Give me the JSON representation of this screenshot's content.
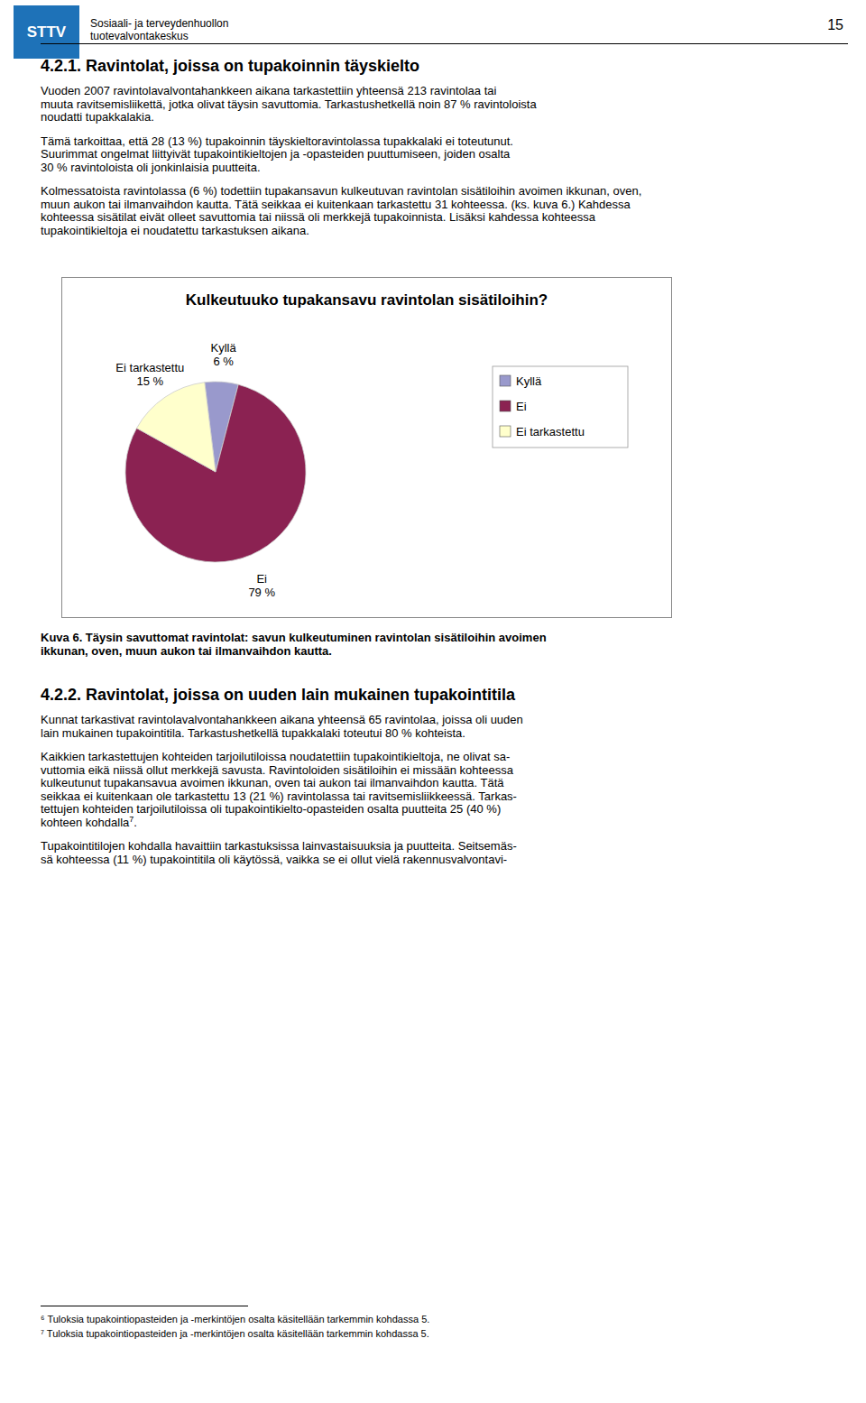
{
  "chart_data": {
    "type": "pie",
    "title": "Kulkeutuuko tupakansavu ravintolan sisätiloihin?",
    "categories": [
      "Kyllä",
      "Ei",
      "Ei tarkastettu"
    ],
    "values": [
      6,
      79,
      15
    ],
    "value_labels": [
      "6 %",
      "79 %",
      "15 %"
    ],
    "colors": [
      "#9999cc",
      "#8b2252",
      "#ffffcc"
    ],
    "data_labels": true,
    "legend": "right"
  },
  "page": {
    "logo": "STTV",
    "organization": [
      "Sosiaali- ja terveydenhuollon",
      "tuotevalvontakeskus"
    ],
    "page_number": "15",
    "before_chart": [
      {
        "kind": "heading",
        "text": "4.2.1. Ravintolat, joissa on tupakoinnin täyskielto"
      },
      {
        "kind": "paragraph",
        "lines": [
          "Vuoden 2007 ravintolavalvontahankkeen aikana tarkastettiin yhteensä 213 ravintolaa tai",
          "muuta ravitsemisliikettä, jotka olivat täysin savuttomia. Tarkastushetkellä noin 87 % ravintoloista",
          "noudatti tupakkalakia."
        ]
      },
      {
        "kind": "paragraph",
        "lines": [
          "Tämä tarkoittaa, että 28 (13 %) tupakoinnin täyskieltoravintolassa tupakkalaki ei toteutunut.",
          "Suurimmat ongelmat liittyivät tupakointikieltojen ja -opasteiden puuttumiseen, joiden osalta",
          "30 % ravintoloista oli jonkinlaisia puutteita."
        ]
      },
      {
        "kind": "paragraph",
        "lines": [
          "Kolmessatoista ravintolassa (6 %) todettiin tupakansavun kulkeutuvan ravintolan sisätiloihin avoimen ikkunan, oven,",
          "muun aukon tai ilmanvaihdon kautta. Tätä seikkaa ei kuitenkaan tarkastettu 31 kohteessa. (ks. kuva 6.) Kahdessa",
          "kohteessa sisätilat eivät olleet savuttomia tai niissä oli merkkejä tupakoinnista. Lisäksi kahdessa kohteessa",
          "tupakointikieltoja ei noudatettu tarkastuksen aikana."
        ]
      }
    ],
    "caption": [
      "Kuva 6.  Täysin savuttomat ravintolat: savun kulkeutuminen ravintolan sisätiloihin avoimen",
      "ikkunan, oven, muun aukon tai ilmanvaihdon kautta."
    ],
    "after_chart": [
      {
        "kind": "heading",
        "text": "4.2.2. Ravintolat, joissa on uuden lain mukainen tupakointitila"
      },
      {
        "kind": "paragraph",
        "lines": [
          "Kunnat tarkastivat ravintolavalvontahankkeen aikana yhteensä 65 ravintolaa, joissa oli uuden",
          "lain mukainen tupakointitila. Tarkastushetkellä tupakkalaki toteutui 80 % kohteista."
        ]
      },
      {
        "kind": "paragraph",
        "lines": [
          "Kaikkien tarkastettujen kohteiden tarjoilutiloissa noudatettiin tupakointikieltoja, ne olivat sa-",
          "vuttomia eikä niissä ollut merkkejä savusta. Ravintoloiden sisätiloihin ei missään kohteessa",
          "kulkeutunut tupakansavua avoimen ikkunan, oven tai aukon tai ilmanvaihdon kautta. Tätä",
          "seikkaa ei kuitenkaan ole tarkastettu 13 (21 %) ravintolassa tai ravitsemisliikkeessä. Tarkas-",
          "tettujen kohteiden tarjoilutiloissa oli tupakointikielto-opasteiden osalta puutteita 25 (40 %)",
          {
            "text": "kohteen kohdalla",
            "sup": "7",
            "tail": "."
          }
        ]
      },
      {
        "kind": "paragraph",
        "lines": [
          "Tupakointitilojen kohdalla havaittiin tarkastuksissa lainvastaisuuksia ja puutteita. Seitsemäs-",
          "sä kohteessa (11 %) tupakointitila oli käytössä, vaikka se ei ollut vielä rakennusvalvontavi-"
        ]
      }
    ],
    "footnotes": [
      "⁶ Tuloksia tupakointiopasteiden ja -merkintöjen osalta käsitellään tarkemmin kohdassa 5.",
      "⁷ Tuloksia tupakointiopasteiden ja -merkintöjen osalta käsitellään tarkemmin kohdassa 5."
    ]
  }
}
